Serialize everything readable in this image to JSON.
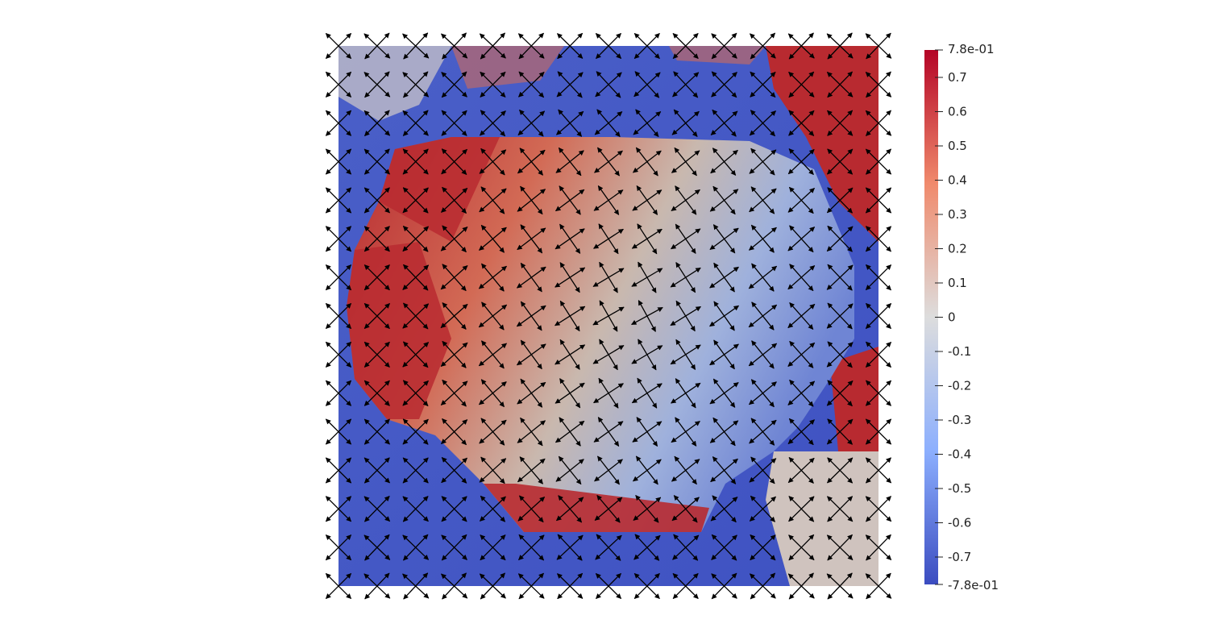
{
  "colorbar": {
    "max_label": "7.8e-01",
    "min_label": "-7.8e-01",
    "range": [
      -0.78,
      0.78
    ],
    "ticks": [
      {
        "value": 0.7,
        "label": "0.7"
      },
      {
        "value": 0.6,
        "label": "0.6"
      },
      {
        "value": 0.5,
        "label": "0.5"
      },
      {
        "value": 0.4,
        "label": "0.4"
      },
      {
        "value": 0.3,
        "label": "0.3"
      },
      {
        "value": 0.2,
        "label": "0.2"
      },
      {
        "value": 0.1,
        "label": "0.1"
      },
      {
        "value": 0.0,
        "label": "0"
      },
      {
        "value": -0.1,
        "label": "-0.1"
      },
      {
        "value": -0.2,
        "label": "-0.2"
      },
      {
        "value": -0.3,
        "label": "-0.3"
      },
      {
        "value": -0.4,
        "label": "-0.4"
      },
      {
        "value": -0.5,
        "label": "-0.5"
      },
      {
        "value": -0.6,
        "label": "-0.6"
      },
      {
        "value": -0.7,
        "label": "-0.7"
      }
    ],
    "colormap": [
      "#3b4cc0",
      "#dddddd",
      "#b40426"
    ]
  },
  "field": {
    "background_color": "#3b4cc0",
    "grid": "24x24 director glyphs (double-headed arrows, cross pattern)",
    "hexagon_color": "#c0282d"
  }
}
